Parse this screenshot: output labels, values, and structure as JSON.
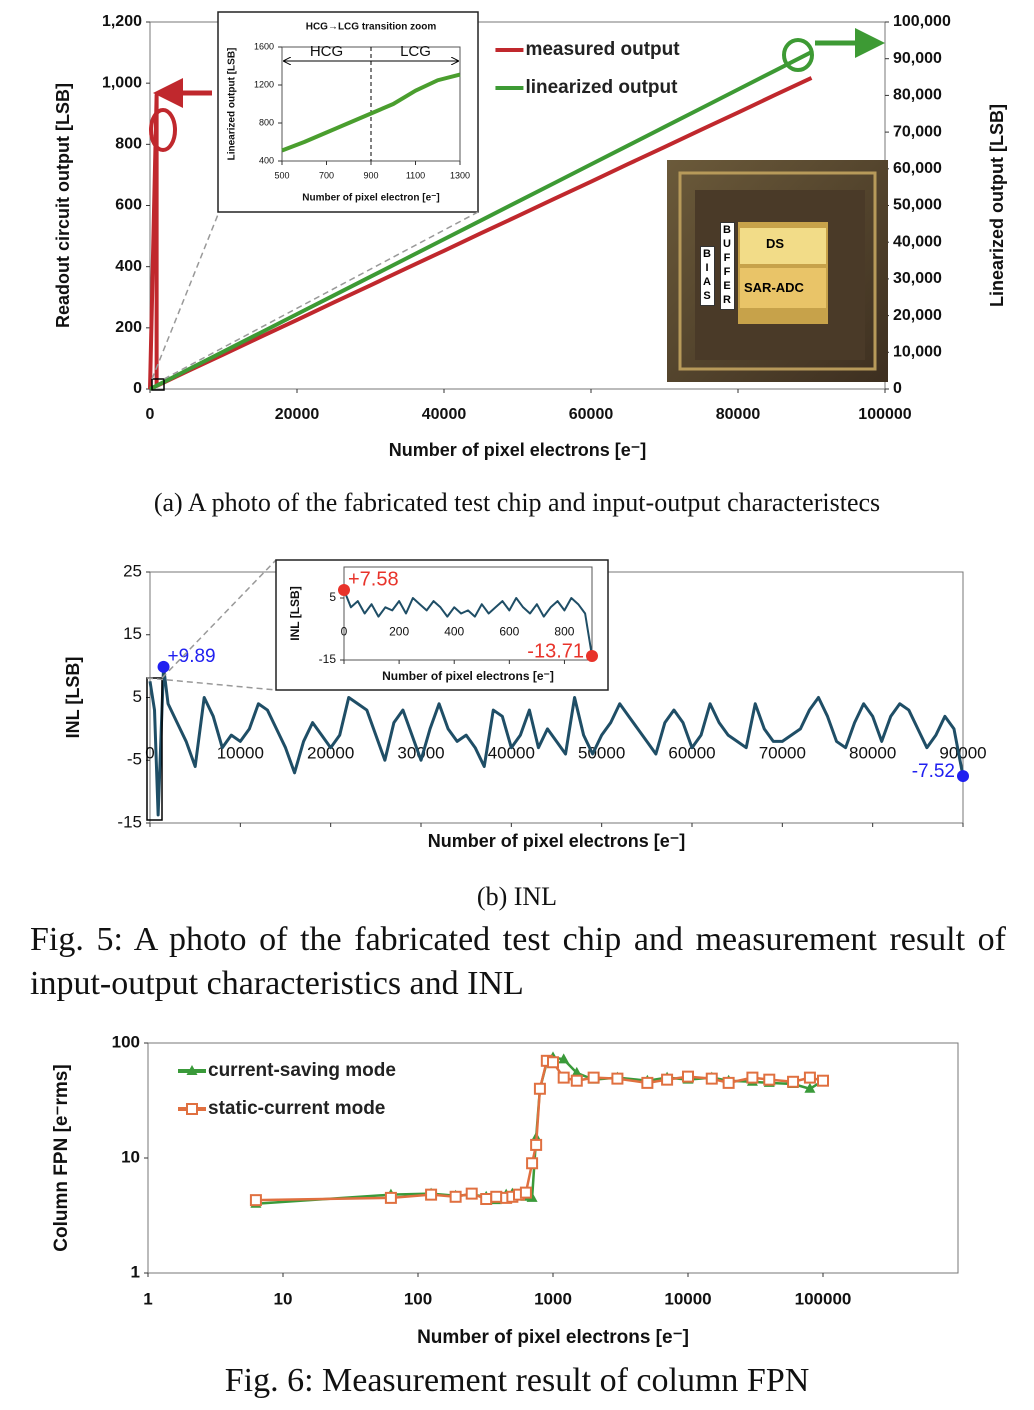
{
  "chart_data": [
    {
      "type": "line",
      "x_label": "Number of pixel electrons [e⁻]",
      "y_label": "Readout circuit output [LSB]",
      "y2_label": "Linearized output [LSB]",
      "xlim": [
        0,
        100000
      ],
      "xticks": [
        0,
        20000,
        40000,
        60000,
        80000,
        100000
      ],
      "ylim": [
        0,
        1200
      ],
      "yticks": [
        0,
        200,
        400,
        600,
        800,
        {
          "value": 1000,
          "label": "1,000"
        },
        {
          "value": 1200,
          "label": "1,200"
        }
      ],
      "y2lim": [
        0,
        100000
      ],
      "y2ticks": [
        0,
        {
          "value": 10000,
          "label": "10,000"
        },
        {
          "value": 20000,
          "label": "20,000"
        },
        {
          "value": 30000,
          "label": "30,000"
        },
        {
          "value": 40000,
          "label": "40,000"
        },
        {
          "value": 50000,
          "label": "50,000"
        },
        {
          "value": 60000,
          "label": "60,000"
        },
        {
          "value": 70000,
          "label": "70,000"
        },
        {
          "value": 80000,
          "label": "80,000"
        },
        {
          "value": 90000,
          "label": "90,000"
        },
        {
          "value": 100000,
          "label": "100,000"
        }
      ],
      "legend": "upper center",
      "x": [
        0,
        900,
        900,
        5000,
        10000,
        15000,
        20000,
        25000,
        30000,
        35000,
        40000,
        45000,
        50000,
        55000,
        60000,
        65000,
        70000,
        75000,
        80000,
        85000,
        90000
      ],
      "series": [
        {
          "name": "measured output",
          "color": "#c0282d",
          "values": [
            0,
            961,
            10,
            57,
            113,
            170,
            226,
            283,
            339,
            396,
            452,
            509,
            565,
            622,
            678,
            735,
            791,
            848,
            904,
            961,
            1017
          ]
        },
        {
          "name": "linearized output",
          "color": "#3d9a34",
          "axis": "y2",
          "values": [
            0,
            900,
            900,
            5100,
            10200,
            15300,
            20400,
            25500,
            30600,
            35700,
            40800,
            45900,
            51000,
            56100,
            61200,
            66300,
            71400,
            76500,
            81600,
            86700,
            91800
          ]
        }
      ]
    },
    {
      "type": "line",
      "title": "HCG→LCG transition zoom",
      "x_label": "Number of pixel electron [e⁻]",
      "y_label": "Linearized output [LSB]",
      "xlim": [
        500,
        1300
      ],
      "xticks": [
        500,
        700,
        900,
        1100,
        1300
      ],
      "ylim": [
        400,
        1600
      ],
      "yticks": [
        400,
        800,
        1200,
        1600
      ],
      "divider_x": 900,
      "region_labels": [
        "HCG",
        "LCG"
      ],
      "x": [
        500,
        600,
        700,
        800,
        900,
        1000,
        1100,
        1200,
        1300
      ],
      "series": [
        {
          "color": "#4a9e2e",
          "values": [
            510,
            600,
            700,
            800,
            900,
            1000,
            1140,
            1250,
            1310
          ]
        }
      ]
    },
    {
      "type": "line",
      "x_label": "Number of pixel electrons [e⁻]",
      "y_label": "INL [LSB]",
      "xlim": [
        0,
        90000
      ],
      "xticks": [
        0,
        10000,
        20000,
        30000,
        40000,
        50000,
        60000,
        70000,
        80000,
        90000
      ],
      "ylim": [
        -15,
        25
      ],
      "yticks": [
        -15,
        -5,
        5,
        15,
        25
      ],
      "x": [
        0,
        500,
        900,
        1500,
        2000,
        3000,
        4000,
        5000,
        6000,
        7000,
        8000,
        9000,
        10000,
        11000,
        12000,
        13000,
        14000,
        15000,
        16000,
        17000,
        18000,
        19000,
        20000,
        21000,
        22000,
        23000,
        24000,
        25000,
        26000,
        27000,
        28000,
        29000,
        30000,
        31000,
        32000,
        33000,
        34000,
        35000,
        36000,
        37000,
        38000,
        39000,
        40000,
        41000,
        42000,
        43000,
        44000,
        45000,
        46000,
        47000,
        48000,
        49000,
        50000,
        51000,
        52000,
        53000,
        54000,
        55000,
        56000,
        57000,
        58000,
        59000,
        60000,
        61000,
        62000,
        63000,
        64000,
        65000,
        66000,
        67000,
        68000,
        69000,
        70000,
        71000,
        72000,
        73000,
        74000,
        75000,
        76000,
        77000,
        78000,
        79000,
        80000,
        81000,
        82000,
        83000,
        84000,
        85000,
        86000,
        87000,
        88000,
        89000,
        90000
      ],
      "series": [
        {
          "color": "#1f4e66",
          "values": [
            7.58,
            3,
            -13.71,
            9.89,
            4,
            1,
            -2,
            -6,
            5,
            2,
            -3,
            -1,
            -2,
            0,
            4,
            3,
            0,
            -3,
            -7,
            -2,
            1,
            -1,
            -3,
            -1,
            5,
            4,
            3,
            -1,
            -5,
            1,
            3,
            -1,
            -5,
            0,
            4,
            0,
            -2,
            -1,
            -3,
            -6,
            3,
            2,
            -3,
            -1,
            3,
            -3,
            0,
            -2,
            -4,
            5,
            -1,
            -4,
            -1,
            1,
            4,
            2,
            0,
            -2,
            -4,
            1,
            3,
            1,
            -3,
            -1,
            4,
            1,
            -1,
            -2,
            -3,
            4,
            0,
            -2,
            -2,
            -1,
            0,
            3,
            5,
            2,
            -2,
            -3,
            1,
            4,
            2,
            -2,
            2,
            4,
            3,
            0,
            -3,
            -1,
            2,
            0,
            -7.52
          ]
        }
      ],
      "annotations": [
        {
          "text": "+9.89",
          "x": 1500,
          "y": 9.89,
          "color": "#2020f0"
        },
        {
          "text": "-7.52",
          "x": 90000,
          "y": -7.52,
          "color": "#2020f0"
        }
      ]
    },
    {
      "type": "line",
      "x_label": "Number of pixel electrons [e⁻]",
      "y_label": "INL [LSB]",
      "xlim": [
        0,
        900
      ],
      "xticks": [
        0,
        200,
        400,
        600,
        800
      ],
      "ylim": [
        -15,
        15
      ],
      "yticks": [
        -15,
        5
      ],
      "x": [
        0,
        25,
        50,
        75,
        100,
        125,
        150,
        175,
        200,
        225,
        250,
        275,
        300,
        325,
        350,
        375,
        400,
        425,
        450,
        475,
        500,
        525,
        550,
        575,
        600,
        625,
        650,
        675,
        700,
        725,
        750,
        775,
        800,
        825,
        850,
        875,
        900
      ],
      "series": [
        {
          "color": "#1f4e66",
          "values": [
            7.58,
            2,
            4,
            0,
            3,
            -1,
            2,
            1,
            4,
            0,
            5,
            3,
            1,
            4,
            2,
            -1,
            2,
            0,
            1,
            -1,
            3,
            0,
            2,
            4,
            1,
            5,
            2,
            0,
            3,
            -1,
            2,
            4,
            1,
            5,
            3,
            0,
            -13.71
          ]
        }
      ],
      "annotations": [
        {
          "text": "+7.58",
          "x": 0,
          "y": 7.58,
          "color": "#e8332a"
        },
        {
          "text": "-13.71",
          "x": 900,
          "y": -13.71,
          "color": "#e8332a"
        }
      ]
    },
    {
      "type": "line",
      "x_label": "Number of pixel electrons [e⁻]",
      "y_label": "Column FPN [e⁻rms]",
      "xlog": true,
      "ylog": true,
      "xlim": [
        1,
        1000000
      ],
      "xticks": [
        1,
        10,
        100,
        1000,
        10000,
        100000
      ],
      "ylim": [
        1,
        100
      ],
      "yticks": [
        1,
        10,
        100
      ],
      "legend": "upper left",
      "x": [
        6.3,
        63,
        125,
        190,
        250,
        320,
        380,
        450,
        500,
        560,
        630,
        700,
        750,
        800,
        900,
        1000,
        1200,
        1500,
        2000,
        3000,
        5000,
        7000,
        10000,
        15000,
        20000,
        30000,
        40000,
        60000,
        80000,
        100000
      ],
      "series": [
        {
          "name": "current-saving mode",
          "color": "#3a9a3a",
          "marker": "triangle",
          "values": [
            4,
            4.8,
            4.9,
            4.7,
            4.8,
            4.6,
            4.3,
            4.8,
            4.9,
            4.7,
            4.6,
            4.5,
            15,
            40,
            68,
            75,
            72,
            55,
            48,
            50,
            47,
            50,
            48,
            50,
            47,
            46,
            45,
            44,
            40,
            47
          ]
        },
        {
          "name": "static-current mode",
          "color": "#e07040",
          "marker": "square",
          "values": [
            4.3,
            4.5,
            4.8,
            4.6,
            4.9,
            4.4,
            4.6,
            4.5,
            4.6,
            4.8,
            5,
            9,
            13,
            40,
            70,
            68,
            50,
            47,
            50,
            49,
            45,
            48,
            51,
            49,
            45,
            50,
            48,
            46,
            50,
            47
          ]
        }
      ]
    }
  ],
  "chip_photo": {
    "labels": [
      "DS",
      "SAR-ADC",
      "BIAS",
      "BUFFER"
    ]
  },
  "captions": {
    "a": "(a) A photo of the fabricated test chip and input-output characteristecs",
    "b": "(b) INL",
    "fig5": "Fig. 5: A photo of the fabricated test chip and measurement result of input-output characteristics and INL",
    "fig6": "Fig. 6: Measurement result of column FPN"
  }
}
